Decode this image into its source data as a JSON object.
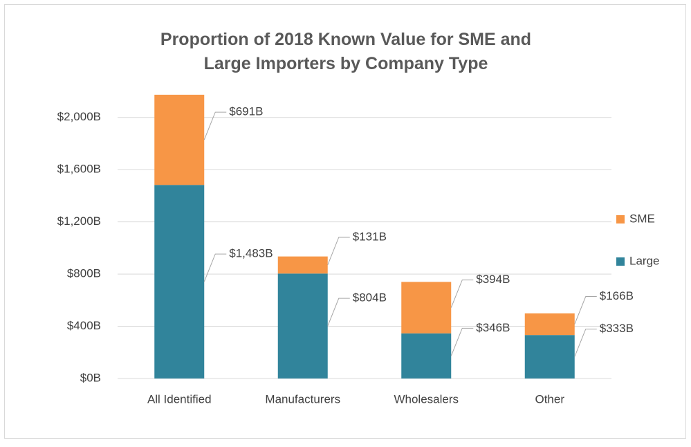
{
  "chart_data": {
    "type": "stacked_bar",
    "title": "Proportion of 2018 Known Value for SME and Large Importers by Company Type",
    "categories": [
      "All Identified",
      "Manufacturers",
      "Wholesalers",
      "Other"
    ],
    "series": [
      {
        "name": "Large",
        "color": "#31849b",
        "values": [
          1483,
          804,
          346,
          333
        ],
        "value_labels": [
          "$1,483B",
          "$804B",
          "$346B",
          "$333B"
        ]
      },
      {
        "name": "SME",
        "color": "#f79646",
        "values": [
          691,
          131,
          394,
          166
        ],
        "value_labels": [
          "$691B",
          "$131B",
          "$394B",
          "$166B"
        ]
      }
    ],
    "ylim": [
      0,
      2200
    ],
    "yticks": [
      {
        "value": 0,
        "label": "$0B"
      },
      {
        "value": 400,
        "label": "$400B"
      },
      {
        "value": 800,
        "label": "$800B"
      },
      {
        "value": 1200,
        "label": "$1,200B"
      },
      {
        "value": 1600,
        "label": "$1,600B"
      },
      {
        "value": 2000,
        "label": "$2,000B"
      }
    ],
    "grid": true,
    "legend": "right"
  }
}
